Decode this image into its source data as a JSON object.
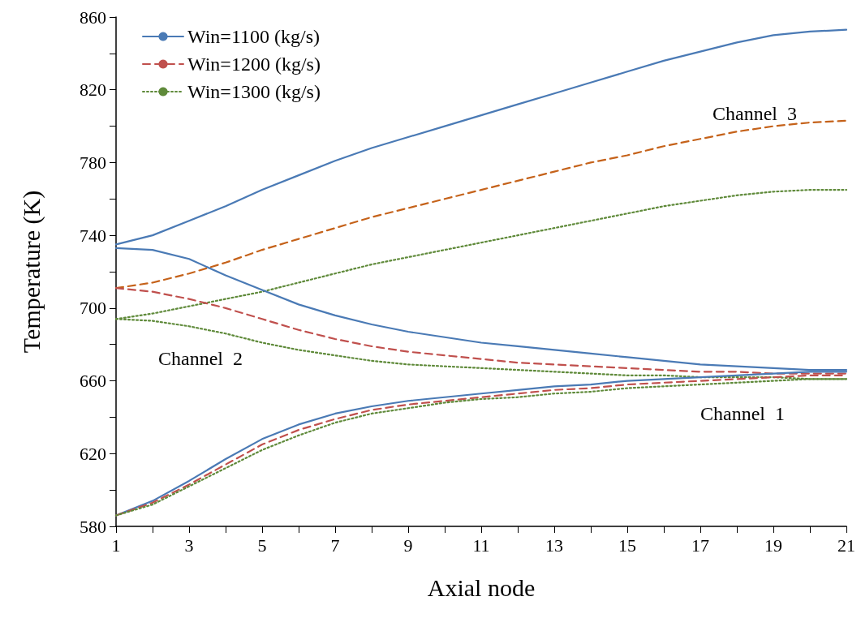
{
  "chart_data": {
    "type": "line",
    "xlabel": "Axial node",
    "ylabel": "Temperature (K)",
    "x": [
      1,
      2,
      3,
      4,
      5,
      6,
      7,
      8,
      9,
      10,
      11,
      12,
      13,
      14,
      15,
      16,
      17,
      18,
      19,
      20,
      21
    ],
    "xlim": [
      1,
      21
    ],
    "xticks": [
      1,
      {
        "value": 2,
        "label": null
      },
      3,
      {
        "value": 4,
        "label": null
      },
      5,
      {
        "value": 6,
        "label": null
      },
      7,
      {
        "value": 8,
        "label": null
      },
      9,
      {
        "value": 10,
        "label": null
      },
      11,
      {
        "value": 12,
        "label": null
      },
      13,
      {
        "value": 14,
        "label": null
      },
      15,
      {
        "value": 16,
        "label": null
      },
      17,
      {
        "value": 18,
        "label": null
      },
      19,
      {
        "value": 20,
        "label": null
      },
      21
    ],
    "ylim": [
      580,
      860
    ],
    "yticks": [
      580,
      {
        "value": 600,
        "label": null
      },
      620,
      {
        "value": 640,
        "label": null
      },
      660,
      {
        "value": 680,
        "label": null
      },
      700,
      {
        "value": 720,
        "label": null
      },
      740,
      {
        "value": 760,
        "label": null
      },
      780,
      {
        "value": 800,
        "label": null
      },
      820,
      {
        "value": 840,
        "label": null
      },
      860
    ],
    "grid": false,
    "legend": "top left",
    "marker": "none",
    "series": [
      {
        "color": "#4a7ab5",
        "line_style": "solid",
        "values": [
          735,
          740,
          748,
          756,
          765,
          773,
          781,
          788,
          794,
          800,
          806,
          812,
          818,
          824,
          830,
          836,
          841,
          846,
          850,
          852,
          853
        ]
      },
      {
        "color": "#c5621a",
        "line_style": "dashed",
        "values": [
          711,
          714,
          719,
          725,
          732,
          738,
          744,
          750,
          755,
          760,
          765,
          770,
          775,
          780,
          784,
          789,
          793,
          797,
          800,
          802,
          803
        ]
      },
      {
        "color": "#5f8a3a",
        "line_style": "dotted",
        "values": [
          694,
          697,
          701,
          705,
          709,
          714,
          719,
          724,
          728,
          732,
          736,
          740,
          744,
          748,
          752,
          756,
          759,
          762,
          764,
          765,
          765
        ]
      },
      {
        "name": "Win=1100 (kg/s)",
        "color": "#4a7ab5",
        "line_style": "solid",
        "values": [
          733,
          732,
          727,
          718,
          710,
          702,
          696,
          691,
          687,
          684,
          681,
          679,
          677,
          675,
          673,
          671,
          669,
          668,
          667,
          666,
          666
        ]
      },
      {
        "name": "Win=1200 (kg/s)",
        "color": "#c0504d",
        "line_style": "dashed",
        "values": [
          711,
          709,
          705,
          700,
          694,
          688,
          683,
          679,
          676,
          674,
          672,
          670,
          669,
          668,
          667,
          666,
          665,
          665,
          664,
          664,
          664
        ]
      },
      {
        "name": "Win=1300 (kg/s)",
        "color": "#5f8a3a",
        "line_style": "dotted",
        "values": [
          694,
          693,
          690,
          686,
          681,
          677,
          674,
          671,
          669,
          668,
          667,
          666,
          665,
          664,
          663,
          663,
          662,
          662,
          662,
          661,
          661
        ]
      },
      {
        "color": "#4a7ab5",
        "line_style": "solid",
        "values": [
          586,
          594,
          605,
          617,
          628,
          636,
          642,
          646,
          649,
          651,
          653,
          655,
          657,
          658,
          660,
          661,
          662,
          663,
          664,
          665,
          665
        ]
      },
      {
        "color": "#c0504d",
        "line_style": "dashed",
        "values": [
          586,
          593,
          603,
          614,
          625,
          633,
          639,
          644,
          647,
          649,
          651,
          653,
          655,
          656,
          658,
          659,
          660,
          661,
          662,
          663,
          663
        ]
      },
      {
        "color": "#5f8a3a",
        "line_style": "dotted",
        "values": [
          586,
          592,
          602,
          612,
          622,
          630,
          637,
          642,
          645,
          648,
          650,
          651,
          653,
          654,
          656,
          657,
          658,
          659,
          660,
          661,
          661
        ]
      }
    ],
    "annotations": [
      "Channel  3",
      "Channel  2",
      "Channel  1"
    ]
  }
}
